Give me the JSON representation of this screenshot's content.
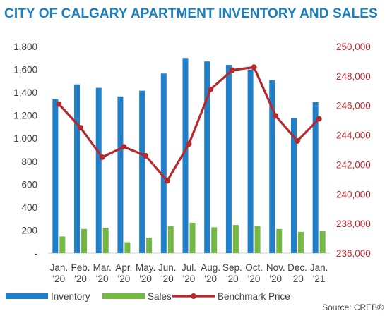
{
  "title": "CITY OF CALGARY APARTMENT INVENTORY AND SALES",
  "source": "Source: CREB®",
  "colors": {
    "inventory": "#1f7fc8",
    "sales": "#74b844",
    "benchmark": "#b5282c",
    "title": "#1a7fc1"
  },
  "chart_data": {
    "type": "bar",
    "categories": [
      [
        "Jan.",
        "'20"
      ],
      [
        "Feb.",
        "'20"
      ],
      [
        "Mar.",
        "'20"
      ],
      [
        "Apr.",
        "'20"
      ],
      [
        "May.",
        "'20"
      ],
      [
        "Jun.",
        "'20"
      ],
      [
        "Jul.",
        "'20"
      ],
      [
        "Aug.",
        "'20"
      ],
      [
        "Sep.",
        "'20"
      ],
      [
        "Oct.",
        "'20"
      ],
      [
        "Nov.",
        "'20"
      ],
      [
        "Dec.",
        "'20"
      ],
      [
        "Jan.",
        "'21"
      ]
    ],
    "series": [
      {
        "name": "Inventory",
        "type": "bar",
        "axis": "left",
        "values": [
          1340,
          1470,
          1440,
          1365,
          1415,
          1565,
          1700,
          1670,
          1640,
          1600,
          1505,
          1175,
          1315
        ]
      },
      {
        "name": "Sales",
        "type": "bar",
        "axis": "left",
        "values": [
          145,
          210,
          220,
          95,
          135,
          235,
          265,
          225,
          245,
          235,
          210,
          185,
          190
        ]
      },
      {
        "name": "Benchmark Price",
        "type": "line",
        "axis": "right",
        "values": [
          246100,
          244500,
          242500,
          243200,
          242600,
          240900,
          243400,
          247100,
          248400,
          248600,
          245300,
          243600,
          245100
        ]
      }
    ],
    "left_axis": {
      "ylim": [
        0,
        1800
      ],
      "ticks": [
        "-",
        "200",
        "400",
        "600",
        "800",
        "1,000",
        "1,200",
        "1,400",
        "1,600",
        "1,800"
      ]
    },
    "right_axis": {
      "ylim": [
        236000,
        250000
      ],
      "ticks": [
        "236,000",
        "238,000",
        "240,000",
        "242,000",
        "244,000",
        "246,000",
        "248,000",
        "250,000"
      ]
    },
    "grid": false,
    "legend": "bottom-left"
  }
}
